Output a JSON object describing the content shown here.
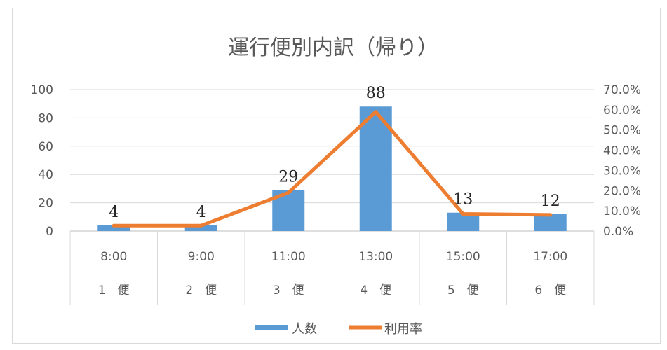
{
  "chart_data": {
    "type": "bar",
    "title": "運行便別内訳（帰り）",
    "categories": [
      {
        "time": "8:00",
        "trip": "1　便"
      },
      {
        "time": "9:00",
        "trip": "2　便"
      },
      {
        "time": "11:00",
        "trip": "3　便"
      },
      {
        "time": "13:00",
        "trip": "4　便"
      },
      {
        "time": "15:00",
        "trip": "5　便"
      },
      {
        "time": "17:00",
        "trip": "6　便"
      }
    ],
    "series": [
      {
        "name": "人数",
        "type": "bar",
        "axis": "left",
        "color": "#5B9BD5",
        "values": [
          4,
          4,
          29,
          88,
          13,
          12
        ]
      },
      {
        "name": "利用率",
        "type": "line",
        "axis": "right",
        "color": "#ED7D31",
        "values": [
          0.027,
          0.027,
          0.19,
          0.59,
          0.085,
          0.08
        ]
      }
    ],
    "data_labels": [
      "4",
      "4",
      "29",
      "88",
      "13",
      "12"
    ],
    "y_left": {
      "ylim": [
        0,
        100
      ],
      "ticks": [
        "0",
        "20",
        "40",
        "60",
        "80",
        "100"
      ]
    },
    "y_right": {
      "ylim": [
        0,
        0.7
      ],
      "ticks": [
        "0.0%",
        "10.0%",
        "20.0%",
        "30.0%",
        "40.0%",
        "50.0%",
        "60.0%",
        "70.0%"
      ]
    },
    "grid": true,
    "legend_position": "bottom"
  }
}
